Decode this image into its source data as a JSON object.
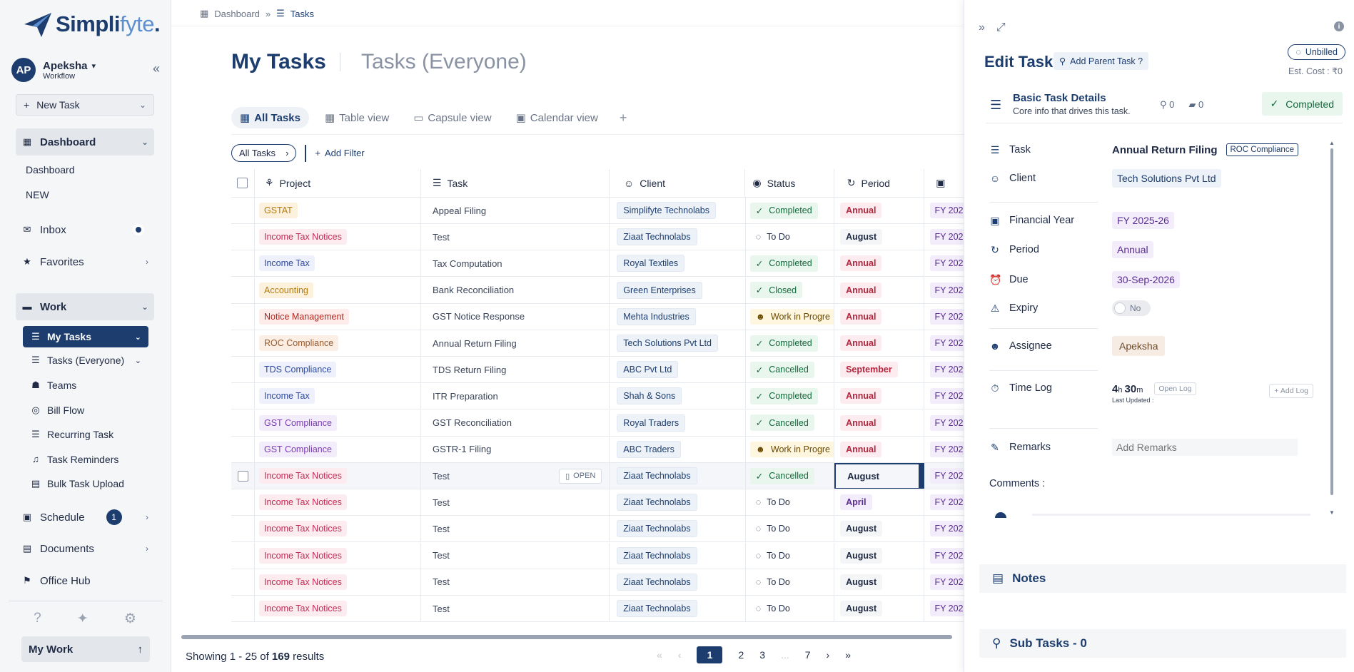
{
  "brand": {
    "name_main": "Simpli",
    "name_accent": "fyte",
    "name_dot": "."
  },
  "user": {
    "initials": "AP",
    "name": "Apeksha",
    "role": "Workflow"
  },
  "sidebar": {
    "new_task": "New Task",
    "dashboard_label": "Dashboard",
    "dashboard_sub": [
      "Dashboard",
      "NEW"
    ],
    "inbox": "Inbox",
    "favorites": "Favorites",
    "work_label": "Work",
    "work_items": [
      "My Tasks",
      "Tasks (Everyone)",
      "Teams",
      "Bill Flow",
      "Recurring Task",
      "Task Reminders",
      "Bulk Task Upload"
    ],
    "schedule": "Schedule",
    "schedule_count": "1",
    "documents": "Documents",
    "office_hub": "Office Hub",
    "my_work": "My Work"
  },
  "breadcrumb": {
    "root": "Dashboard",
    "current": "Tasks"
  },
  "header": {
    "title": "My Tasks",
    "alt_title": "Tasks (Everyone)"
  },
  "views": {
    "all": "All Tasks",
    "table": "Table view",
    "capsule": "Capsule view",
    "calendar": "Calendar view"
  },
  "filters": {
    "chip": "All Tasks",
    "add_filter": "Add Filter"
  },
  "table": {
    "columns": [
      "Project",
      "Task",
      "Client",
      "Status",
      "Period"
    ],
    "open_label": "OPEN",
    "fy_prefix": "FY 202",
    "rows": [
      {
        "project": "GSTAT",
        "task": "Appeal Filing",
        "client": "Simplifyte Technolabs",
        "status": "Completed",
        "period": "Annual"
      },
      {
        "project": "Income Tax Notices",
        "task": "Test",
        "client": "Ziaat Technolabs",
        "status": "To Do",
        "period": "August"
      },
      {
        "project": "Income Tax",
        "task": "Tax Computation",
        "client": "Royal Textiles",
        "status": "Completed",
        "period": "Annual"
      },
      {
        "project": "Accounting",
        "task": "Bank Reconciliation",
        "client": "Green Enterprises",
        "status": "Closed",
        "period": "Annual"
      },
      {
        "project": "Notice Management",
        "task": "GST Notice Response",
        "client": "Mehta Industries",
        "status": "Work in Progre",
        "period": "Annual"
      },
      {
        "project": "ROC Compliance",
        "task": "Annual Return Filing",
        "client": "Tech Solutions Pvt Ltd",
        "status": "Completed",
        "period": "Annual"
      },
      {
        "project": "TDS Compliance",
        "task": "TDS Return Filing",
        "client": "ABC Pvt Ltd",
        "status": "Cancelled",
        "period": "September"
      },
      {
        "project": "Income Tax",
        "task": "ITR Preparation",
        "client": "Shah & Sons",
        "status": "Completed",
        "period": "Annual"
      },
      {
        "project": "GST Compliance",
        "task": "GST Reconciliation",
        "client": "Royal Traders",
        "status": "Cancelled",
        "period": "Annual"
      },
      {
        "project": "GST Compliance",
        "task": "GSTR-1 Filing",
        "client": "ABC Traders",
        "status": "Work in Progre",
        "period": "Annual"
      },
      {
        "project": "Income Tax Notices",
        "task": "Test",
        "client": "Ziaat Technolabs",
        "status": "Cancelled",
        "period": "August"
      },
      {
        "project": "Income Tax Notices",
        "task": "Test",
        "client": "Ziaat Technolabs",
        "status": "To Do",
        "period": "April"
      },
      {
        "project": "Income Tax Notices",
        "task": "Test",
        "client": "Ziaat Technolabs",
        "status": "To Do",
        "period": "August"
      },
      {
        "project": "Income Tax Notices",
        "task": "Test",
        "client": "Ziaat Technolabs",
        "status": "To Do",
        "period": "August"
      },
      {
        "project": "Income Tax Notices",
        "task": "Test",
        "client": "Ziaat Technolabs",
        "status": "To Do",
        "period": "August"
      },
      {
        "project": "Income Tax Notices",
        "task": "Test",
        "client": "Ziaat Technolabs",
        "status": "To Do",
        "period": "August"
      }
    ]
  },
  "footer": {
    "showing_prefix": "Showing 1 - 25 of ",
    "showing_total": "169",
    "showing_suffix": " results",
    "pages": [
      "1",
      "2",
      "3",
      "...",
      "7"
    ]
  },
  "panel": {
    "title": "Edit Task",
    "add_parent": "Add Parent Task ?",
    "billing": "Unbilled",
    "est_cost": "Est. Cost : ₹0",
    "basic_title": "Basic Task Details",
    "basic_sub": "Core info that drives this task.",
    "subtask_count": "0",
    "doc_count": "0",
    "status": "Completed",
    "labels": {
      "task": "Task",
      "client": "Client",
      "fy": "Financial Year",
      "period": "Period",
      "due": "Due",
      "expiry": "Expiry",
      "assignee": "Assignee",
      "timelog": "Time Log",
      "remarks": "Remarks"
    },
    "values": {
      "task": "Annual Return Filing",
      "project_chip": "ROC Compliance",
      "client": "Tech Solutions Pvt Ltd",
      "fy": "FY 2025-26",
      "period": "Annual",
      "due": "30-Sep-2026",
      "expiry": "No",
      "assignee": "Apeksha",
      "time_h": "4",
      "time_m": "30",
      "open_log": "Open Log",
      "last_updated": "Last Updated :",
      "add_log": "+ Add Log",
      "remarks_placeholder": "Add Remarks"
    },
    "comments_label": "Comments :",
    "notes": "Notes",
    "subtasks": "Sub Tasks - 0"
  },
  "colors": {
    "brand": "#1c3d6e",
    "completed_bg": "#e8f6ee",
    "completed_fg": "#136a3a",
    "wip_bg": "#fff6df",
    "fy_bg": "#f2ecfb"
  }
}
